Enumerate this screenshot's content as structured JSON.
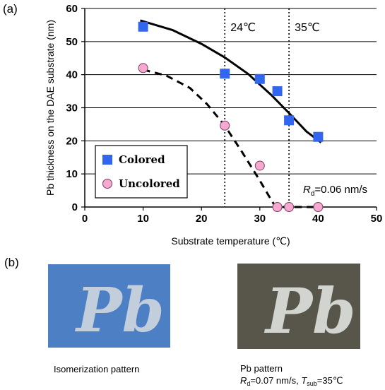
{
  "panel_a_label": "(a)",
  "panel_b_label": "(b)",
  "chart_data": {
    "type": "scatter",
    "xlabel": "Substrate temperature (℃)",
    "ylabel": "Pb thickness on the DAE substrate (nm)",
    "xlim": [
      0,
      50
    ],
    "ylim": [
      0,
      60
    ],
    "xticks": [
      "0",
      "10",
      "20",
      "30",
      "40",
      "50"
    ],
    "yticks": [
      "0",
      "10",
      "20",
      "30",
      "40",
      "50",
      "60"
    ],
    "grid": "horizontal",
    "legend_position": "lower-left",
    "series": [
      {
        "name": "Colored",
        "marker": "square",
        "color": "#3366ee",
        "x": [
          10,
          24,
          30,
          33,
          35,
          40
        ],
        "y": [
          54.5,
          40.3,
          38.7,
          35.0,
          26.2,
          21.2
        ],
        "trend_line": "solid",
        "trend_x": [
          9.5,
          15,
          20,
          24,
          28,
          32,
          35,
          38,
          40.5
        ],
        "trend_y": [
          56.4,
          53.5,
          49.3,
          45.2,
          40.2,
          33.8,
          28.4,
          22.8,
          19.5
        ]
      },
      {
        "name": "Uncolored",
        "marker": "circle",
        "color": "#f7a8d0",
        "x": [
          10,
          24,
          30,
          33,
          35,
          40
        ],
        "y": [
          42.0,
          24.6,
          12.5,
          0,
          0,
          0
        ],
        "trend_line": "dashed",
        "trend_x": [
          10,
          14,
          18,
          21,
          24,
          27,
          30,
          31.5,
          32.5,
          34,
          37,
          40
        ],
        "trend_y": [
          41.5,
          39.7,
          36.0,
          31.0,
          24.6,
          16.5,
          8.0,
          3.5,
          0.6,
          0,
          0,
          0
        ]
      }
    ],
    "vertical_lines": [
      {
        "x": 24,
        "label": "24℃",
        "style": "dotted"
      },
      {
        "x": 35,
        "label": "35℃",
        "style": "dotted"
      }
    ],
    "annotation": {
      "symbol": "R",
      "subscript": "d",
      "text": "=0.06 nm/s"
    }
  },
  "photos": [
    {
      "name": "isomerization-pattern",
      "glyph": "Pb",
      "background": "#4d7fc4",
      "glyph_color": "#c3cedd",
      "caption": "Isomerization pattern"
    },
    {
      "name": "pb-pattern",
      "glyph": "Pb",
      "background": "#58564a",
      "glyph_color": "#d2d4d0",
      "caption_line1": "Pb pattern",
      "caption_line2": {
        "r": "R",
        "r_sub": "d",
        "mid": "=0.07 nm/s, ",
        "t": "T",
        "t_sub": "sub",
        "end": "=35℃"
      }
    }
  ]
}
